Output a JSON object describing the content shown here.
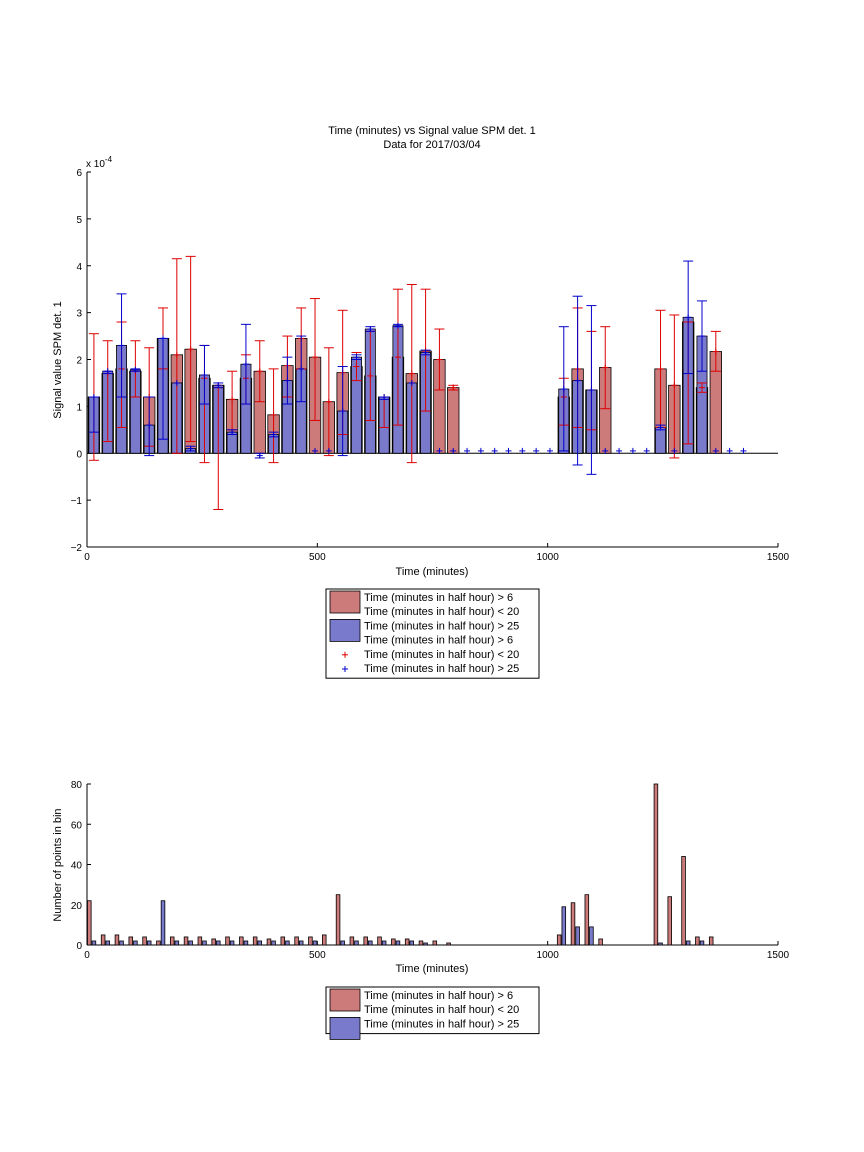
{
  "chart_data": [
    {
      "type": "bar",
      "title": "Time (minutes) vs Signal value SPM det. 1",
      "subtitle": "Data for 2017/03/04",
      "xlabel": "Time (minutes)",
      "ylabel": "Signal value SPM det. 1",
      "y_exponent_label": "x 10",
      "y_exponent": "-4",
      "xlim": [
        0,
        1500
      ],
      "ylim": [
        -2,
        6
      ],
      "x_ticks": [
        "0",
        "500",
        "1000",
        "1500"
      ],
      "y_ticks": [
        "−2",
        "−1",
        "0",
        "1",
        "2",
        "3",
        "4",
        "5",
        "6"
      ],
      "grid": false,
      "legend_position": "below",
      "legend": [
        {
          "label": "Time (minutes in half hour) > 6",
          "kind": "bar",
          "color": "#cc7a7a"
        },
        {
          "label": "Time (minutes in half hour) < 20",
          "kind": "none"
        },
        {
          "label": "Time (minutes in half hour) > 25",
          "kind": "bar",
          "color": "#7a7acc"
        },
        {
          "label": "Time (minutes in half hour) > 6",
          "kind": "none"
        },
        {
          "label": "Time (minutes in half hour) < 20",
          "kind": "plus",
          "color": "#dd0000"
        },
        {
          "label": "Time (minutes in half hour) > 25",
          "kind": "plus",
          "color": "#0000cc"
        }
      ],
      "series": [
        {
          "color": "#cc7a7a",
          "error_color": "#dd0000",
          "bar_width": 25,
          "points": [
            {
              "x": 15,
              "y": 1.2,
              "lo": -0.15,
              "hi": 2.55
            },
            {
              "x": 45,
              "y": 1.7,
              "lo": 0.25,
              "hi": 2.4
            },
            {
              "x": 75,
              "y": 1.8,
              "lo": 0.55,
              "hi": 2.8
            },
            {
              "x": 105,
              "y": 1.75,
              "lo": 1.2,
              "hi": 2.4
            },
            {
              "x": 135,
              "y": 1.2,
              "lo": 0.15,
              "hi": 2.25
            },
            {
              "x": 165,
              "y": 2.45,
              "lo": 1.8,
              "hi": 3.1
            },
            {
              "x": 195,
              "y": 2.1,
              "lo": 0.0,
              "hi": 4.15
            },
            {
              "x": 225,
              "y": 2.22,
              "lo": 0.25,
              "hi": 4.2
            },
            {
              "x": 255,
              "y": 1.6,
              "lo": -0.2,
              "hi": 2.3
            },
            {
              "x": 285,
              "y": 1.45,
              "lo": -1.2,
              "hi": 1.4
            },
            {
              "x": 315,
              "y": 1.15,
              "lo": 0.5,
              "hi": 1.75
            },
            {
              "x": 345,
              "y": 1.6,
              "lo": 1.05,
              "hi": 2.1
            },
            {
              "x": 375,
              "y": 1.75,
              "lo": 1.1,
              "hi": 2.4
            },
            {
              "x": 405,
              "y": 0.82,
              "lo": -0.2,
              "hi": 1.8
            },
            {
              "x": 435,
              "y": 1.87,
              "lo": 1.2,
              "hi": 2.5
            },
            {
              "x": 465,
              "y": 2.45,
              "lo": 1.8,
              "hi": 3.1
            },
            {
              "x": 495,
              "y": 2.05,
              "lo": 0.7,
              "hi": 3.3
            },
            {
              "x": 525,
              "y": 1.1,
              "lo": -0.05,
              "hi": 2.25
            },
            {
              "x": 555,
              "y": 1.72,
              "lo": 0.4,
              "hi": 3.05
            },
            {
              "x": 585,
              "y": 1.85,
              "lo": 1.55,
              "hi": 2.15
            },
            {
              "x": 615,
              "y": 1.65,
              "lo": 0.7,
              "hi": 2.6
            },
            {
              "x": 645,
              "y": 1.2,
              "lo": 0.55,
              "hi": 1.2
            },
            {
              "x": 675,
              "y": 2.05,
              "lo": 0.6,
              "hi": 3.5
            },
            {
              "x": 705,
              "y": 1.7,
              "lo": -0.2,
              "hi": 3.6
            },
            {
              "x": 735,
              "y": 2.18,
              "lo": 0.9,
              "hi": 3.5
            },
            {
              "x": 765,
              "y": 2.0,
              "lo": 1.35,
              "hi": 2.65
            },
            {
              "x": 795,
              "y": 1.4,
              "lo": 1.35,
              "hi": 1.45
            },
            {
              "x": 1035,
              "y": 1.2,
              "lo": 0.6,
              "hi": 1.6
            },
            {
              "x": 1065,
              "y": 1.8,
              "lo": 0.55,
              "hi": 3.1
            },
            {
              "x": 1095,
              "y": 1.35,
              "lo": 0.5,
              "hi": 2.6
            },
            {
              "x": 1125,
              "y": 1.83,
              "lo": 0.95,
              "hi": 2.7
            },
            {
              "x": 1245,
              "y": 1.8,
              "lo": 0.55,
              "hi": 3.05
            },
            {
              "x": 1275,
              "y": 1.45,
              "lo": -0.1,
              "hi": 2.95
            },
            {
              "x": 1305,
              "y": 2.8,
              "lo": 0.2,
              "hi": 2.8
            },
            {
              "x": 1335,
              "y": 1.4,
              "lo": 1.3,
              "hi": 1.5
            },
            {
              "x": 1365,
              "y": 2.17,
              "lo": 1.75,
              "hi": 2.6
            }
          ]
        },
        {
          "color": "#7a7acc",
          "error_color": "#0000cc",
          "bar_width": 22,
          "points": [
            {
              "x": 15,
              "y": 1.2,
              "lo": 0.45,
              "hi": 1.2
            },
            {
              "x": 45,
              "y": 1.75,
              "lo": 1.7,
              "hi": 1.75
            },
            {
              "x": 75,
              "y": 2.3,
              "lo": 1.2,
              "hi": 3.4
            },
            {
              "x": 105,
              "y": 1.78,
              "lo": 1.75,
              "hi": 1.8
            },
            {
              "x": 135,
              "y": 0.6,
              "lo": -0.05,
              "hi": 1.2
            },
            {
              "x": 165,
              "y": 2.45,
              "lo": 0.3,
              "hi": 2.45
            },
            {
              "x": 195,
              "y": 1.5,
              "lo": 1.5,
              "hi": 1.5
            },
            {
              "x": 225,
              "y": 0.1,
              "lo": 0.05,
              "hi": 0.15
            },
            {
              "x": 255,
              "y": 1.67,
              "lo": 1.05,
              "hi": 2.3
            },
            {
              "x": 285,
              "y": 1.45,
              "lo": 1.4,
              "hi": 1.5
            },
            {
              "x": 315,
              "y": 0.45,
              "lo": 0.4,
              "hi": 0.5
            },
            {
              "x": 345,
              "y": 1.9,
              "lo": 1.05,
              "hi": 2.75
            },
            {
              "x": 375,
              "y": -0.05,
              "lo": -0.1,
              "hi": 0.0
            },
            {
              "x": 405,
              "y": 0.4,
              "lo": 0.35,
              "hi": 0.45
            },
            {
              "x": 435,
              "y": 1.55,
              "lo": 1.05,
              "hi": 2.05
            },
            {
              "x": 465,
              "y": 1.8,
              "lo": 1.1,
              "hi": 2.5
            },
            {
              "x": 495,
              "y": 0.05,
              "lo": 0.05,
              "hi": 0.05
            },
            {
              "x": 525,
              "y": 0.05,
              "lo": 0.05,
              "hi": 0.05
            },
            {
              "x": 555,
              "y": 0.9,
              "lo": -0.05,
              "hi": 1.85
            },
            {
              "x": 585,
              "y": 2.05,
              "lo": 2.0,
              "hi": 2.1
            },
            {
              "x": 615,
              "y": 2.65,
              "lo": 2.6,
              "hi": 2.7
            },
            {
              "x": 645,
              "y": 1.2,
              "lo": 1.15,
              "hi": 1.2
            },
            {
              "x": 675,
              "y": 2.72,
              "lo": 2.7,
              "hi": 2.75
            },
            {
              "x": 705,
              "y": 1.5,
              "lo": 1.5,
              "hi": 1.5
            },
            {
              "x": 735,
              "y": 2.15,
              "lo": 2.1,
              "hi": 2.2
            },
            {
              "x": 765,
              "y": 0.05,
              "lo": 0.05,
              "hi": 0.05
            },
            {
              "x": 795,
              "y": 0.05,
              "lo": 0.05,
              "hi": 0.05
            },
            {
              "x": 825,
              "y": 0.05,
              "lo": 0.05,
              "hi": 0.05
            },
            {
              "x": 855,
              "y": 0.05,
              "lo": 0.05,
              "hi": 0.05
            },
            {
              "x": 885,
              "y": 0.05,
              "lo": 0.05,
              "hi": 0.05
            },
            {
              "x": 915,
              "y": 0.05,
              "lo": 0.05,
              "hi": 0.05
            },
            {
              "x": 945,
              "y": 0.05,
              "lo": 0.05,
              "hi": 0.05
            },
            {
              "x": 975,
              "y": 0.05,
              "lo": 0.05,
              "hi": 0.05
            },
            {
              "x": 1005,
              "y": 0.05,
              "lo": 0.05,
              "hi": 0.05
            },
            {
              "x": 1035,
              "y": 1.37,
              "lo": 0.05,
              "hi": 2.7
            },
            {
              "x": 1065,
              "y": 1.55,
              "lo": -0.25,
              "hi": 3.35
            },
            {
              "x": 1095,
              "y": 1.35,
              "lo": -0.45,
              "hi": 3.15
            },
            {
              "x": 1125,
              "y": 0.05,
              "lo": 0.05,
              "hi": 0.05
            },
            {
              "x": 1155,
              "y": 0.05,
              "lo": 0.05,
              "hi": 0.05
            },
            {
              "x": 1185,
              "y": 0.05,
              "lo": 0.05,
              "hi": 0.05
            },
            {
              "x": 1215,
              "y": 0.05,
              "lo": 0.05,
              "hi": 0.05
            },
            {
              "x": 1245,
              "y": 0.55,
              "lo": 0.5,
              "hi": 0.6
            },
            {
              "x": 1275,
              "y": 0.05,
              "lo": 0.05,
              "hi": 0.05
            },
            {
              "x": 1305,
              "y": 2.9,
              "lo": 1.7,
              "hi": 4.1
            },
            {
              "x": 1335,
              "y": 2.5,
              "lo": 1.75,
              "hi": 3.25
            },
            {
              "x": 1365,
              "y": 0.05,
              "lo": 0.05,
              "hi": 0.05
            },
            {
              "x": 1395,
              "y": 0.05,
              "lo": 0.05,
              "hi": 0.05
            },
            {
              "x": 1425,
              "y": 0.05,
              "lo": 0.05,
              "hi": 0.05
            }
          ]
        }
      ]
    },
    {
      "type": "bar",
      "xlabel": "Time (minutes)",
      "ylabel": "Number of points in bin",
      "xlim": [
        0,
        1500
      ],
      "ylim": [
        0,
        80
      ],
      "x_ticks": [
        "0",
        "500",
        "1000",
        "1500"
      ],
      "y_ticks": [
        "0",
        "20",
        "40",
        "60",
        "80"
      ],
      "grid": false,
      "legend_position": "below",
      "legend": [
        {
          "label": "Time (minutes in half hour) > 6",
          "kind": "bar",
          "color": "#cc7a7a"
        },
        {
          "label": "Time (minutes in half hour) < 20",
          "kind": "none"
        },
        {
          "label": "Time (minutes in half hour) > 25",
          "kind": "bar",
          "color": "#7a7acc"
        }
      ],
      "series": [
        {
          "color": "#cc7a7a",
          "bar_width": 8,
          "points": [
            {
              "x": 5,
              "y": 22
            },
            {
              "x": 35,
              "y": 5
            },
            {
              "x": 65,
              "y": 5
            },
            {
              "x": 95,
              "y": 4
            },
            {
              "x": 125,
              "y": 4
            },
            {
              "x": 155,
              "y": 2
            },
            {
              "x": 185,
              "y": 4
            },
            {
              "x": 215,
              "y": 4
            },
            {
              "x": 245,
              "y": 4
            },
            {
              "x": 275,
              "y": 3
            },
            {
              "x": 305,
              "y": 4
            },
            {
              "x": 335,
              "y": 4
            },
            {
              "x": 365,
              "y": 4
            },
            {
              "x": 395,
              "y": 3
            },
            {
              "x": 425,
              "y": 4
            },
            {
              "x": 455,
              "y": 4
            },
            {
              "x": 485,
              "y": 4
            },
            {
              "x": 515,
              "y": 5
            },
            {
              "x": 545,
              "y": 25
            },
            {
              "x": 575,
              "y": 4
            },
            {
              "x": 605,
              "y": 4
            },
            {
              "x": 635,
              "y": 4
            },
            {
              "x": 665,
              "y": 3
            },
            {
              "x": 695,
              "y": 3
            },
            {
              "x": 725,
              "y": 2
            },
            {
              "x": 755,
              "y": 2
            },
            {
              "x": 785,
              "y": 1
            },
            {
              "x": 1025,
              "y": 5
            },
            {
              "x": 1055,
              "y": 21
            },
            {
              "x": 1085,
              "y": 25
            },
            {
              "x": 1115,
              "y": 3
            },
            {
              "x": 1235,
              "y": 80
            },
            {
              "x": 1265,
              "y": 24
            },
            {
              "x": 1295,
              "y": 44
            },
            {
              "x": 1325,
              "y": 4
            },
            {
              "x": 1355,
              "y": 4
            }
          ]
        },
        {
          "color": "#7a7acc",
          "bar_width": 8,
          "points": [
            {
              "x": 15,
              "y": 2
            },
            {
              "x": 45,
              "y": 2
            },
            {
              "x": 75,
              "y": 2
            },
            {
              "x": 105,
              "y": 2
            },
            {
              "x": 135,
              "y": 2
            },
            {
              "x": 165,
              "y": 22
            },
            {
              "x": 195,
              "y": 2
            },
            {
              "x": 225,
              "y": 2
            },
            {
              "x": 255,
              "y": 2
            },
            {
              "x": 285,
              "y": 2
            },
            {
              "x": 315,
              "y": 2
            },
            {
              "x": 345,
              "y": 2
            },
            {
              "x": 375,
              "y": 2
            },
            {
              "x": 405,
              "y": 2
            },
            {
              "x": 435,
              "y": 2
            },
            {
              "x": 465,
              "y": 2
            },
            {
              "x": 495,
              "y": 2
            },
            {
              "x": 555,
              "y": 2
            },
            {
              "x": 585,
              "y": 2
            },
            {
              "x": 615,
              "y": 2
            },
            {
              "x": 645,
              "y": 2
            },
            {
              "x": 675,
              "y": 2
            },
            {
              "x": 705,
              "y": 2
            },
            {
              "x": 735,
              "y": 1
            },
            {
              "x": 1035,
              "y": 19
            },
            {
              "x": 1065,
              "y": 9
            },
            {
              "x": 1095,
              "y": 9
            },
            {
              "x": 1245,
              "y": 1
            },
            {
              "x": 1305,
              "y": 2
            },
            {
              "x": 1335,
              "y": 2
            }
          ]
        }
      ]
    }
  ]
}
